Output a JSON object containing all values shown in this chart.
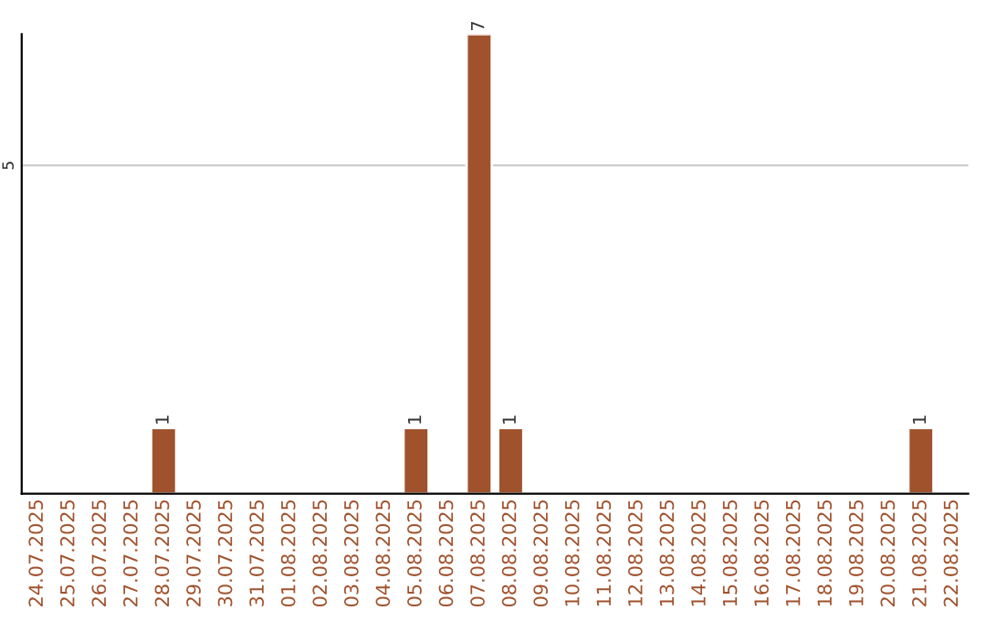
{
  "chart_data": {
    "type": "bar",
    "categories": [
      "24.07.2025",
      "25.07.2025",
      "26.07.2025",
      "27.07.2025",
      "28.07.2025",
      "29.07.2025",
      "30.07.2025",
      "31.07.2025",
      "01.08.2025",
      "02.08.2025",
      "03.08.2025",
      "04.08.2025",
      "05.08.2025",
      "06.08.2025",
      "07.08.2025",
      "08.08.2025",
      "09.08.2025",
      "10.08.2025",
      "11.08.2025",
      "12.08.2025",
      "13.08.2025",
      "14.08.2025",
      "15.08.2025",
      "16.08.2025",
      "17.08.2025",
      "18.08.2025",
      "19.08.2025",
      "20.08.2025",
      "21.08.2025",
      "22.08.2025"
    ],
    "values": [
      null,
      null,
      null,
      null,
      1,
      null,
      null,
      null,
      null,
      null,
      null,
      null,
      1,
      null,
      7,
      1,
      null,
      null,
      null,
      null,
      null,
      null,
      null,
      null,
      null,
      null,
      null,
      null,
      1,
      null
    ],
    "value_labels": [
      null,
      null,
      null,
      null,
      "1",
      null,
      null,
      null,
      null,
      null,
      null,
      null,
      "1",
      null,
      "7",
      "1",
      null,
      null,
      null,
      null,
      null,
      null,
      null,
      null,
      null,
      null,
      null,
      null,
      "1",
      null
    ],
    "color": "#a0522d",
    "ylim": [
      0,
      7
    ],
    "yticks": [
      5
    ],
    "grid": "y"
  }
}
